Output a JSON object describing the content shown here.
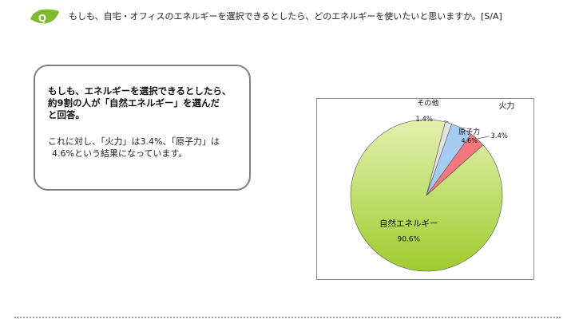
{
  "header": {
    "badge_letter": "Q",
    "question": "もしも、自宅・オフィスのエネルギーを選択できるとしたら、どのエネルギーを使いたいと思いますか。[S/A]"
  },
  "summary": {
    "headline": [
      "もしも、エネルギーを選択できるとしたら、",
      "約9割の人が「自然エネルギー」を選んだ",
      "と回答。"
    ],
    "body": [
      "これに対し、「火力」は3.4%、「原子力」は",
      "4.6%という結果になっています。"
    ]
  },
  "colors": {
    "badge_green": "#7dba2c",
    "natural_light": "#e3f0b0",
    "natural_dark": "#9fcc2e",
    "nuclear": "#a7ccf2",
    "thermal": "#f4777d",
    "other": "#e2e2e2"
  },
  "chart_data": {
    "type": "pie",
    "slices": [
      {
        "name": "自然エネルギー",
        "label": "90.6%",
        "value": 90.6
      },
      {
        "name": "その他",
        "label": "1.4%",
        "value": 1.4
      },
      {
        "name": "原子力",
        "label": "4.6%",
        "value": 4.6
      },
      {
        "name": "火力",
        "label": "3.4%",
        "value": 3.4
      }
    ]
  }
}
